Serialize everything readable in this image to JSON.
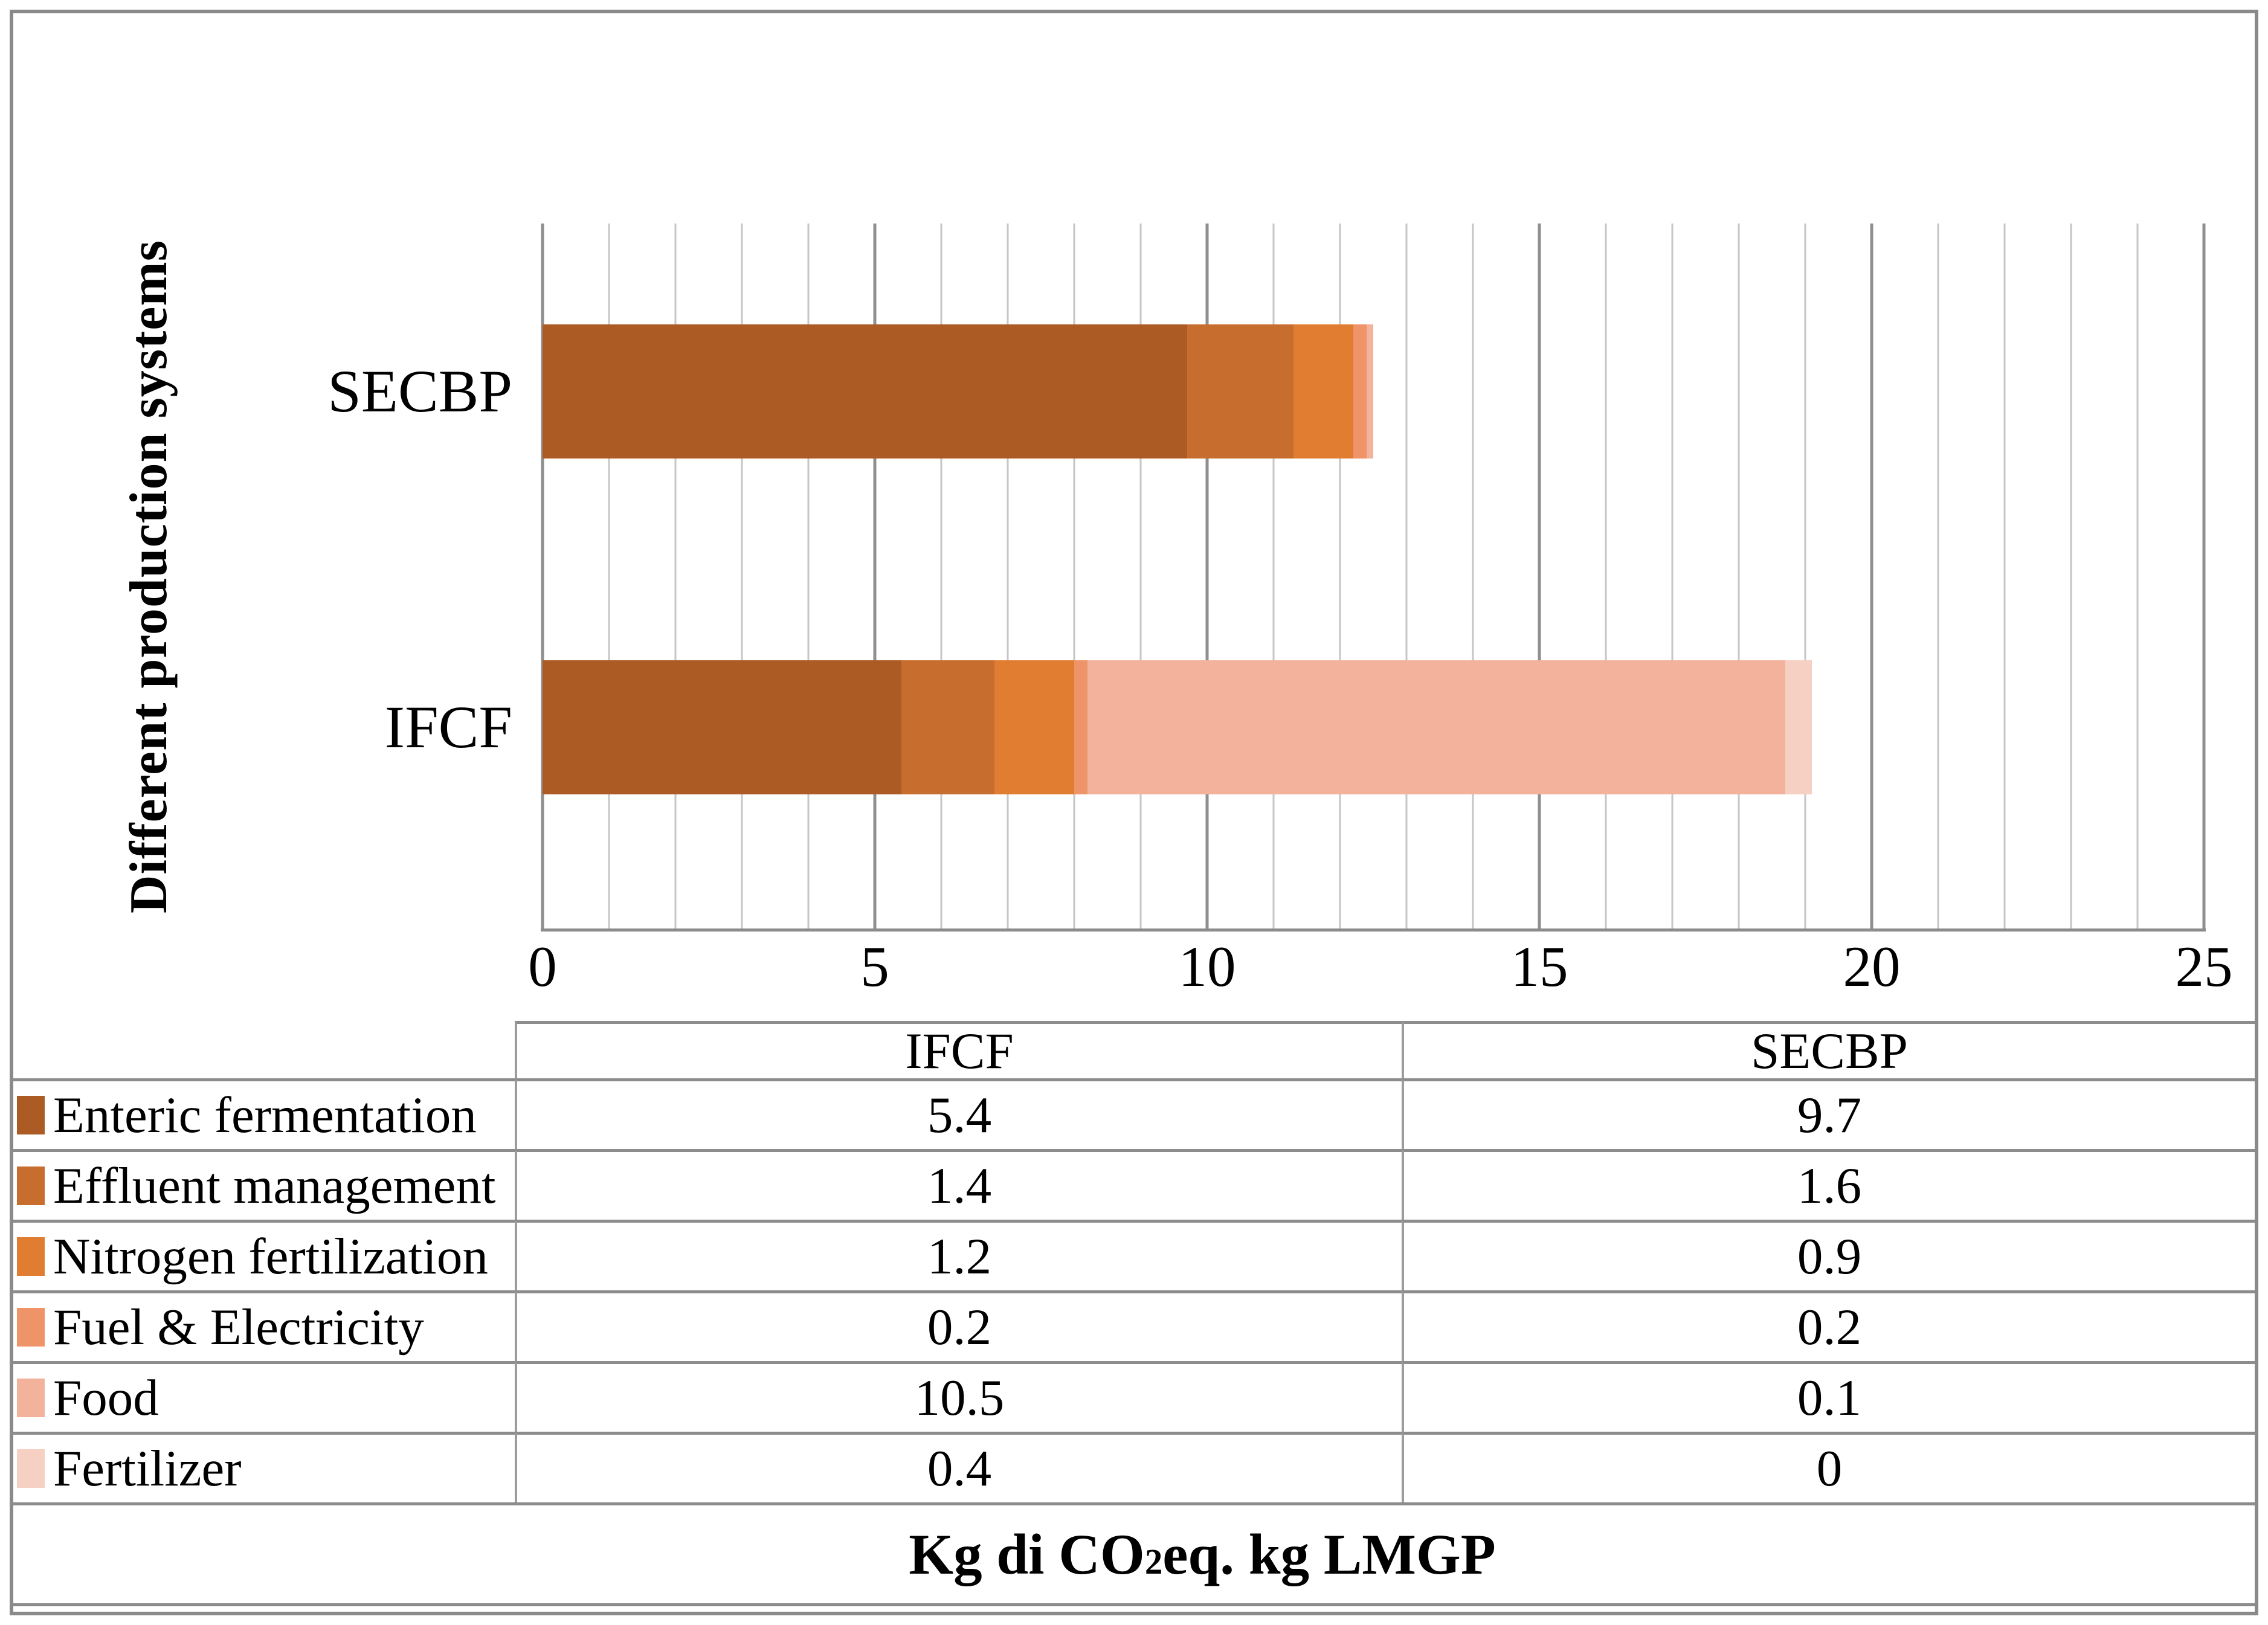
{
  "chart": {
    "y_axis_title": "Different production systems"
  },
  "chart_data": {
    "type": "bar",
    "orientation": "horizontal",
    "stacked": true,
    "title": "",
    "xlabel": "Kg di CO2eq. kg LMGP",
    "ylabel": "Different production systems",
    "xlim": [
      0,
      25
    ],
    "x_minor_step": 1,
    "x_major_step": 5,
    "x_ticks": [
      "0",
      "5",
      "10",
      "15",
      "20",
      "25"
    ],
    "grid": "vertical-minor-and-major",
    "legend_position": "table-left",
    "categories": [
      "SECBP",
      "IFCF"
    ],
    "series": [
      {
        "name": "Enteric fermentation",
        "color": "#AC5B24",
        "values": [
          9.7,
          5.4
        ]
      },
      {
        "name": "Effluent management",
        "color": "#C76E2F",
        "values": [
          1.6,
          1.4
        ]
      },
      {
        "name": "Nitrogen fertilization",
        "color": "#E07D31",
        "values": [
          0.9,
          1.2
        ]
      },
      {
        "name": "Fuel & Electricity",
        "color": "#EF9368",
        "values": [
          0.2,
          0.2
        ]
      },
      {
        "name": "Food",
        "color": "#F2B29C",
        "values": [
          0.1,
          10.5
        ]
      },
      {
        "name": "Fertilizer",
        "color": "#F6D0C3",
        "values": [
          0,
          0.4
        ]
      }
    ],
    "totals": {
      "SECBP": 12.5,
      "IFCF": 19.1
    }
  },
  "table": {
    "columns": [
      "",
      "IFCF",
      "SECBP"
    ],
    "rows": [
      {
        "label": "Enteric fermentation",
        "cells": [
          "5.4",
          "9.7"
        ]
      },
      {
        "label": "Effluent management",
        "cells": [
          "1.4",
          "1.6"
        ]
      },
      {
        "label": "Nitrogen fertilization",
        "cells": [
          "1.2",
          "0.9"
        ]
      },
      {
        "label": "Fuel & Electricity",
        "cells": [
          "0.2",
          "0.2"
        ]
      },
      {
        "label": "Food",
        "cells": [
          "10.5",
          "0.1"
        ]
      },
      {
        "label": "Fertilizer",
        "cells": [
          "0.4",
          "0"
        ]
      }
    ],
    "footer": {
      "prefix": "Kg di CO",
      "subscript": "2",
      "suffix": "eq. kg LMGP"
    }
  },
  "colors": {
    "frame": "#8A8A8A",
    "grid_minor": "#C6C6C6",
    "grid_major": "#8F8F8F",
    "table_border": "#8C8C8C"
  }
}
